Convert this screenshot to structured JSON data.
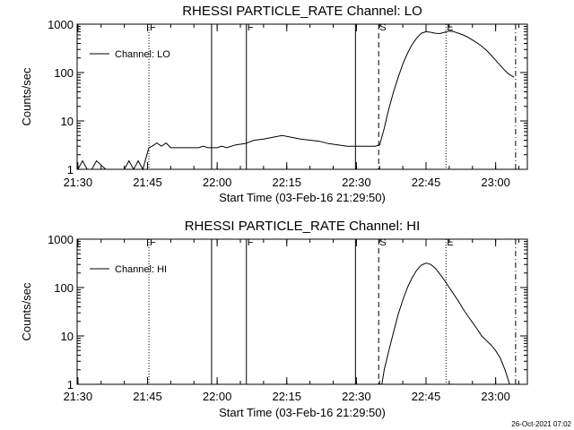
{
  "chart_data": [
    {
      "type": "line",
      "title": "RHESSI PARTICLE_RATE Channel: LO",
      "xlabel": "Start Time (03-Feb-16 21:29:50)",
      "ylabel": "Counts/sec",
      "yscale": "log",
      "ylim": [
        1,
        1000
      ],
      "xlim_minutes": [
        0,
        97
      ],
      "x_ticks": [
        "21:30",
        "21:45",
        "22:00",
        "22:15",
        "22:30",
        "22:45",
        "23:00"
      ],
      "y_ticks": [
        "1",
        "10",
        "100",
        "1000"
      ],
      "legend": {
        "label": "Channel: LO",
        "placement": "top-left"
      },
      "event_markers": [
        {
          "time": "21:45.3",
          "style": "dotted",
          "label": "F"
        },
        {
          "time": "21:58.8",
          "style": "solid",
          "label": ""
        },
        {
          "time": "22:06.3",
          "style": "solid",
          "label": "F"
        },
        {
          "time": "22:29.8",
          "style": "solid",
          "label": ""
        },
        {
          "time": "22:34.8",
          "style": "dashed",
          "label": "S"
        },
        {
          "time": "22:49.3",
          "style": "dotted",
          "label": "E"
        },
        {
          "time": "23:04.3",
          "style": "dashdot",
          "label": ""
        }
      ],
      "series": [
        {
          "name": "Channel: LO",
          "x": [
            "21:30",
            "21:31",
            "21:32",
            "21:33",
            "21:34",
            "21:36",
            "21:38",
            "21:40",
            "21:41",
            "21:42",
            "21:43",
            "21:44",
            "21:44.5",
            "21:45.3",
            "21:46",
            "21:47",
            "21:48",
            "21:49",
            "21:50",
            "21:52",
            "21:54",
            "21:56",
            "21:57",
            "21:58",
            "21:59",
            "22:00",
            "22:01",
            "22:02",
            "22:04",
            "22:06",
            "22:08",
            "22:10",
            "22:12",
            "22:14",
            "22:16",
            "22:18",
            "22:20",
            "22:22",
            "22:24",
            "22:26",
            "22:28",
            "22:30",
            "22:32",
            "22:34",
            "22:35",
            "22:36",
            "22:37",
            "22:38",
            "22:39",
            "22:40",
            "22:41",
            "22:42",
            "22:43",
            "22:44",
            "22:45",
            "22:46",
            "22:47",
            "22:48",
            "22:49",
            "22:50",
            "22:51",
            "22:52",
            "22:53",
            "22:54",
            "22:55",
            "22:56",
            "22:57",
            "22:58",
            "22:59",
            "23:00",
            "23:01",
            "23:02",
            "23:03",
            "23:04"
          ],
          "values": [
            1,
            1.5,
            1,
            1,
            1.5,
            1,
            1,
            1,
            1.5,
            1,
            1.5,
            1,
            1.5,
            2.8,
            3,
            3.5,
            3,
            3.5,
            2.8,
            2.8,
            2.8,
            2.8,
            3,
            2.8,
            2.8,
            2.8,
            3,
            2.8,
            3.2,
            3.4,
            4,
            4.2,
            4.6,
            5,
            4.6,
            4.2,
            4,
            3.8,
            3.4,
            3.2,
            3,
            3,
            3,
            3,
            3.2,
            7,
            18,
            40,
            80,
            150,
            250,
            380,
            520,
            650,
            700,
            680,
            650,
            640,
            680,
            720,
            700,
            650,
            600,
            540,
            470,
            410,
            350,
            290,
            230,
            180,
            140,
            110,
            90,
            80
          ]
        }
      ]
    },
    {
      "type": "line",
      "title": "RHESSI PARTICLE_RATE Channel: HI",
      "xlabel": "Start Time (03-Feb-16 21:29:50)",
      "ylabel": "Counts/sec",
      "yscale": "log",
      "ylim": [
        1,
        1000
      ],
      "xlim_minutes": [
        0,
        97
      ],
      "x_ticks": [
        "21:30",
        "21:45",
        "22:00",
        "22:15",
        "22:30",
        "22:45",
        "23:00"
      ],
      "y_ticks": [
        "1",
        "10",
        "100",
        "1000"
      ],
      "legend": {
        "label": "Channel: HI",
        "placement": "top-left"
      },
      "event_markers": [
        {
          "time": "21:45.3",
          "style": "dotted",
          "label": "F"
        },
        {
          "time": "21:58.8",
          "style": "solid",
          "label": ""
        },
        {
          "time": "22:06.3",
          "style": "solid",
          "label": "F"
        },
        {
          "time": "22:29.8",
          "style": "solid",
          "label": ""
        },
        {
          "time": "22:34.8",
          "style": "dashed",
          "label": "S"
        },
        {
          "time": "22:49.3",
          "style": "dotted",
          "label": "E"
        },
        {
          "time": "23:04.3",
          "style": "dashdot",
          "label": ""
        }
      ],
      "series": [
        {
          "name": "Channel: HI",
          "x": [
            "22:35.5",
            "22:36",
            "22:37",
            "22:38",
            "22:39",
            "22:40",
            "22:41",
            "22:42",
            "22:43",
            "22:44",
            "22:45",
            "22:46",
            "22:47",
            "22:48",
            "22:49",
            "22:50",
            "22:51",
            "22:52",
            "22:53",
            "22:54",
            "22:55",
            "22:56",
            "22:57",
            "22:58",
            "22:59",
            "23:00",
            "23:01",
            "23:02",
            "23:03"
          ],
          "values": [
            1,
            2,
            5,
            12,
            28,
            55,
            100,
            160,
            230,
            290,
            320,
            300,
            250,
            190,
            140,
            100,
            72,
            52,
            36,
            26,
            19,
            14,
            10,
            8,
            6.5,
            5,
            3.5,
            2,
            1
          ]
        }
      ]
    }
  ],
  "footer": {
    "timestamp": "26-Oct-2021 07:02"
  }
}
